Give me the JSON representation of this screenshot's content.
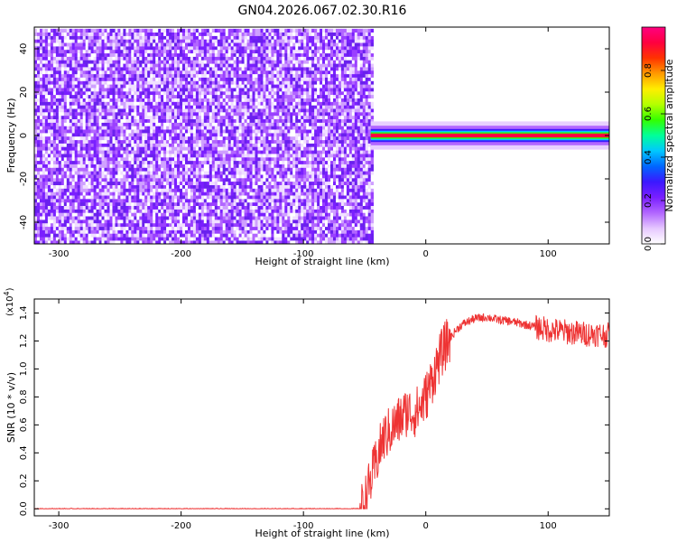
{
  "figure": {
    "title": "GN04.2026.067.02.30.R16"
  },
  "chart_data": [
    {
      "type": "heatmap",
      "xlabel": "Height of straight line (km)",
      "ylabel": "Frequency (Hz)",
      "xlim": [
        -320,
        150
      ],
      "ylim": [
        -50,
        50
      ],
      "xticks": [
        -300,
        -200,
        -100,
        0,
        100
      ],
      "yticks": [
        -40,
        -20,
        0,
        20,
        40
      ],
      "noise_region_x": [
        -320,
        -45
      ],
      "noise_region_y": [
        -50,
        48
      ],
      "signal_band": {
        "x_start": -45,
        "x_end": 150,
        "center_hz": 0,
        "halfwidth_hz": 3
      },
      "colorbar": {
        "label": "Normalized spectral amplitude",
        "range": [
          0,
          1
        ],
        "ticks": [
          0.0,
          0.2,
          0.4,
          0.6,
          0.8
        ],
        "tick_labels": [
          "0.0",
          "0.2",
          "0.4",
          "0.6",
          "0.8"
        ],
        "colors": [
          "#ffffff",
          "#e6c8ff",
          "#b266ff",
          "#7a1fff",
          "#3b18ff",
          "#0066ff",
          "#00c8ff",
          "#00ff99",
          "#33ff00",
          "#b4ff00",
          "#ffee00",
          "#ff9900",
          "#ff3300",
          "#ff0040",
          "#ff0080"
        ]
      }
    },
    {
      "type": "line",
      "xlabel": "Height of straight line (km)",
      "ylabel": "SNR (10 * v/v)",
      "y_multiplier": "(x10",
      "y_multiplier_exp": "4",
      "y_multiplier_close": ")",
      "xlim": [
        -320,
        150
      ],
      "ylim": [
        -0.05,
        1.5
      ],
      "xticks": [
        -300,
        -200,
        -100,
        0,
        100
      ],
      "yticks": [
        0.0,
        0.2,
        0.4,
        0.6,
        0.8,
        1.0,
        1.2,
        1.4
      ],
      "ytick_labels": [
        "0.0",
        "0.2",
        "0.4",
        "0.6",
        "0.8",
        "1.0",
        "1.2",
        "1.4"
      ],
      "line_color": "#ee3333",
      "series": [
        {
          "x": [
            -320,
            -250,
            -150,
            -60,
            -53,
            -50,
            -45,
            -40,
            -35,
            -30,
            -25,
            -20,
            -15,
            -10,
            -5,
            0,
            5,
            10,
            15,
            20,
            25,
            30,
            40,
            50,
            60,
            70,
            80,
            90,
            100,
            110,
            120,
            130,
            140,
            150
          ],
          "values": [
            0.0,
            0.0,
            0.0,
            0.0,
            0.0,
            0.05,
            0.2,
            0.35,
            0.5,
            0.55,
            0.6,
            0.65,
            0.7,
            0.68,
            0.72,
            0.8,
            0.92,
            1.05,
            1.15,
            1.22,
            1.28,
            1.32,
            1.36,
            1.37,
            1.35,
            1.34,
            1.32,
            1.3,
            1.28,
            1.27,
            1.26,
            1.25,
            1.25,
            1.24
          ]
        }
      ]
    }
  ]
}
